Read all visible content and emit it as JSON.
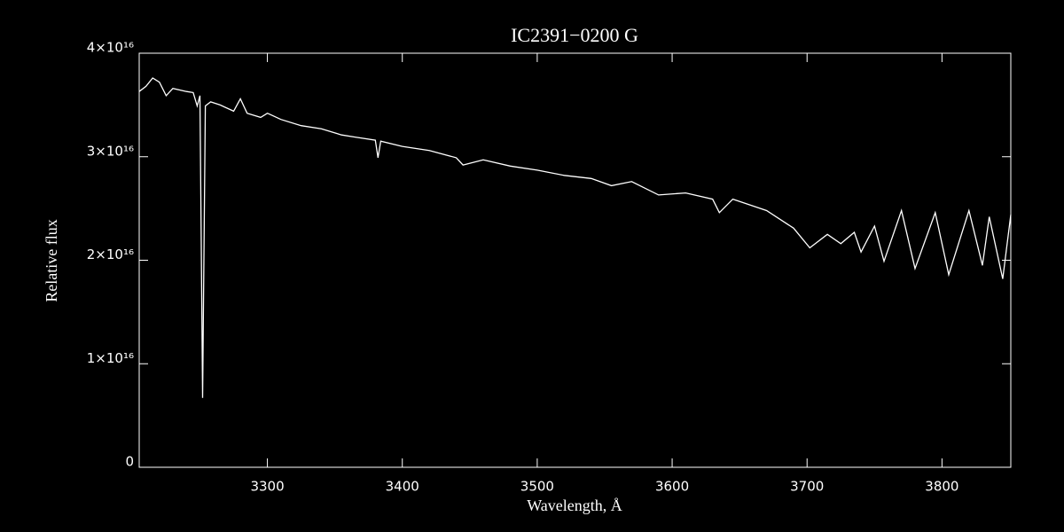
{
  "chart_data": {
    "type": "line",
    "title": "IC2391−0200  G",
    "x_label": "Wavelength, Å",
    "y_label": "Relative flux",
    "xlim": [
      3205,
      3851
    ],
    "xticks": [
      3300,
      3400,
      3500,
      3600,
      3700,
      3800
    ],
    "ylim": [
      0,
      4e+16
    ],
    "yticks": [
      0,
      {
        "value": 1e+16,
        "label": "1×10¹⁶"
      },
      {
        "value": 2e+16,
        "label": "2×10¹⁶"
      },
      {
        "value": 3e+16,
        "label": "3×10¹⁶"
      },
      {
        "value": 4e+16,
        "label": "4×10¹⁶"
      }
    ],
    "series": [
      {
        "color": "#ffffff",
        "x": [
          3205,
          3210,
          3215,
          3220,
          3225,
          3230,
          3240,
          3245,
          3248,
          3250,
          3252,
          3254,
          3258,
          3265,
          3275,
          3280,
          3285,
          3295,
          3300,
          3310,
          3325,
          3340,
          3355,
          3365,
          3380,
          3382,
          3384,
          3400,
          3420,
          3440,
          3445,
          3460,
          3480,
          3500,
          3520,
          3540,
          3555,
          3570,
          3590,
          3610,
          3630,
          3635,
          3645,
          3670,
          3690,
          3702,
          3715,
          3725,
          3735,
          3740,
          3750,
          3757,
          3770,
          3780,
          3795,
          3805,
          3820,
          3830,
          3835,
          3845,
          3851
        ],
        "values": [
          3.63e+16,
          3.68e+16,
          3.76e+16,
          3.72e+16,
          3.59e+16,
          3.66e+16,
          3.63e+16,
          3.62e+16,
          3.49e+16,
          3.59e+16,
          6700000000000000.0,
          3.49e+16,
          3.53e+16,
          3.5e+16,
          3.44e+16,
          3.56e+16,
          3.42e+16,
          3.38e+16,
          3.42e+16,
          3.36e+16,
          3.3e+16,
          3.27e+16,
          3.21e+16,
          3.19e+16,
          3.16e+16,
          2.99e+16,
          3.15e+16,
          3.1e+16,
          3.06e+16,
          2.99e+16,
          2.92e+16,
          2.97e+16,
          2.91e+16,
          2.87e+16,
          2.82e+16,
          2.79e+16,
          2.72e+16,
          2.76e+16,
          2.63e+16,
          2.65e+16,
          2.59e+16,
          2.46e+16,
          2.59e+16,
          2.48e+16,
          2.31e+16,
          2.12e+16,
          2.25e+16,
          2.16e+16,
          2.27e+16,
          2.08e+16,
          2.33e+16,
          1.99e+16,
          2.48e+16,
          1.92e+16,
          2.46e+16,
          1.86e+16,
          2.48e+16,
          1.95e+16,
          2.42e+16,
          1.82e+16,
          2.44e+16
        ]
      }
    ]
  }
}
